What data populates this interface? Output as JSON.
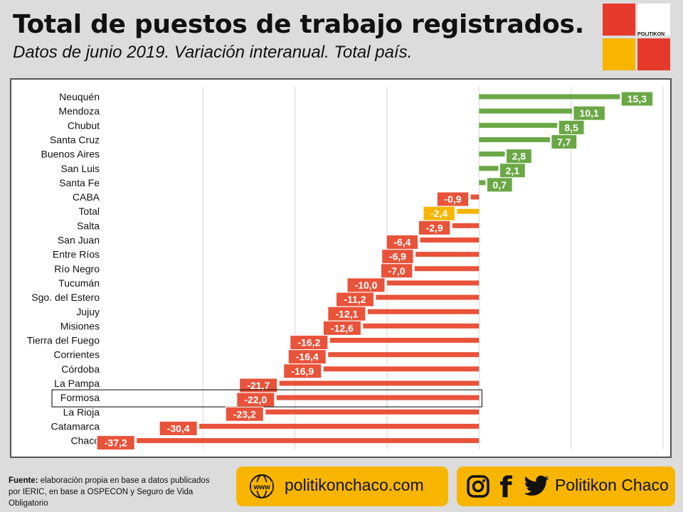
{
  "header": {
    "title": "Total de puestos de trabajo registrados.",
    "subtitle": "Datos de junio 2019. Variación interanual. Total país."
  },
  "logo": {
    "text": "POLITIKON",
    "colors": [
      "#e53a2b",
      "#ffffff",
      "#f7b500",
      "#e53a2b"
    ]
  },
  "colors": {
    "positive": "#6aa845",
    "negative": "#e8533a",
    "total": "#f7b500",
    "highlight_border": "#000000"
  },
  "chart_data": {
    "type": "bar",
    "orientation": "horizontal",
    "categories": [
      "Neuquén",
      "Mendoza",
      "Chubut",
      "Santa Cruz",
      "Buenos Aires",
      "San Luis",
      "Santa Fe",
      "CABA",
      "Total",
      "Salta",
      "San Juan",
      "Entre Ríos",
      "Río Negro",
      "Tucumán",
      "Sgo. del Estero",
      "Jujuy",
      "Misiones",
      "Tierra del Fuego",
      "Corrientes",
      "Córdoba",
      "La Pampa",
      "Formosa",
      "La Rioja",
      "Catamarca",
      "Chaco"
    ],
    "values": [
      15.3,
      10.1,
      8.5,
      7.7,
      2.8,
      2.1,
      0.7,
      -0.9,
      -2.4,
      -2.9,
      -6.4,
      -6.9,
      -7.0,
      -10.0,
      -11.2,
      -12.1,
      -12.6,
      -16.2,
      -16.4,
      -16.9,
      -21.7,
      -22.0,
      -23.2,
      -30.4,
      -37.2
    ],
    "value_labels": [
      "15,3",
      "10,1",
      "8,5",
      "7,7",
      "2,8",
      "2,1",
      "0,7",
      "-0,9",
      "-2,4",
      "-2,9",
      "-6,4",
      "-6,9",
      "-7,0",
      "-10,0",
      "-11,2",
      "-12,1",
      "-12,6",
      "-16,2",
      "-16,4",
      "-16,9",
      "-21,7",
      "-22,0",
      "-23,2",
      "-30,4",
      "-37,2"
    ],
    "highlighted": [
      "Formosa",
      "Total"
    ],
    "xlim": [
      -40,
      20
    ],
    "grid": "vertical",
    "legend": "none"
  },
  "footer": {
    "source_label": "Fuente:",
    "source_text": " elaboración propia en base a datos publicados por IERIC, en base a OSPECON y Seguro de Vida Obligatorio",
    "web_icon_text": "www",
    "website": "politikonchaco.com",
    "social_name": "Politikon Chaco",
    "facebook_glyph": "f"
  }
}
